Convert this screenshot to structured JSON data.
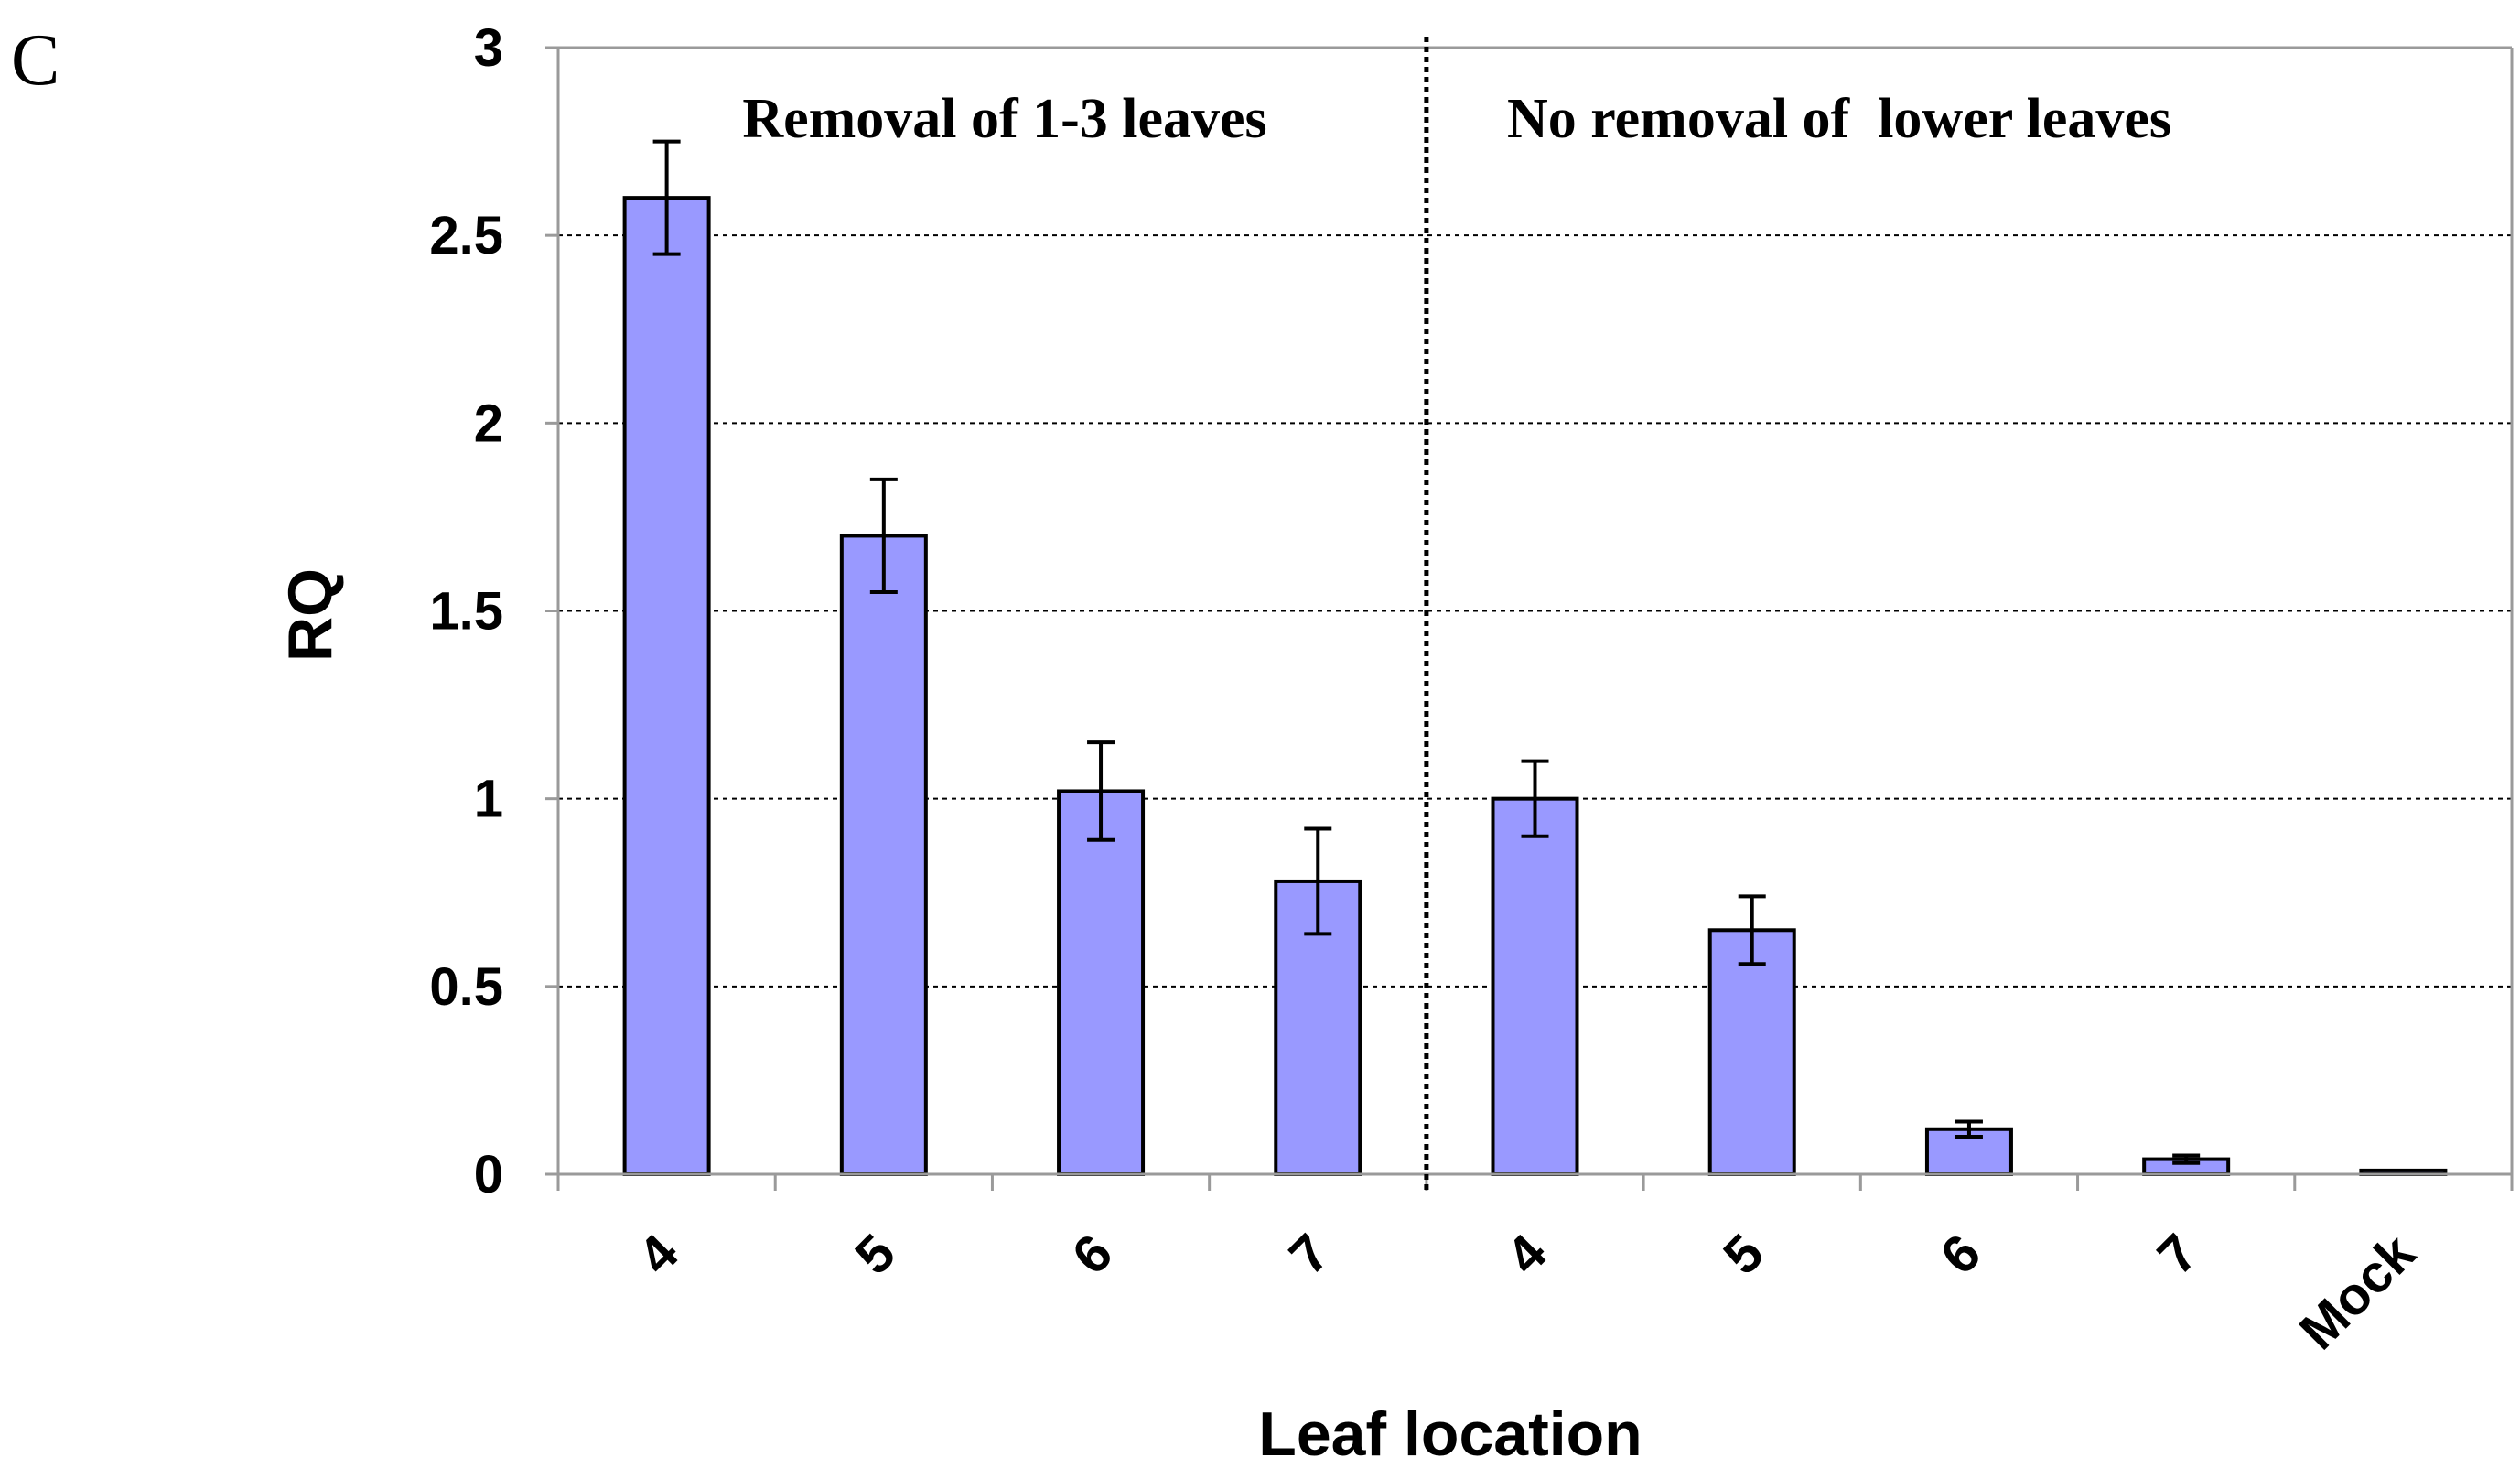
{
  "panel_label": "C",
  "colors": {
    "bar_fill": "#9999ff",
    "bar_stroke": "#000000",
    "gridline": "#000000",
    "axis": "#9a9a9a"
  },
  "chart_data": {
    "type": "bar",
    "ylabel": "RQ",
    "xlabel": "Leaf location",
    "ylim": [
      0,
      3
    ],
    "yticks": [
      "0",
      "0.5",
      "1",
      "1.5",
      "2",
      "2.5",
      "3"
    ],
    "grid": true,
    "categories": [
      "4",
      "5",
      "6",
      "7",
      "4",
      "5",
      "6",
      "7",
      "Mock"
    ],
    "values": [
      2.6,
      1.7,
      1.02,
      0.78,
      1.0,
      0.65,
      0.12,
      0.04,
      0.01
    ],
    "errors": [
      0.15,
      0.15,
      0.13,
      0.14,
      0.1,
      0.09,
      0.02,
      0.01,
      0.0
    ],
    "groups": [
      {
        "label": "Removal of 1-3 leaves",
        "categories": [
          "4",
          "5",
          "6",
          "7"
        ]
      },
      {
        "label": "No removal of  lower leaves",
        "categories": [
          "4",
          "5",
          "6",
          "7",
          "Mock"
        ]
      }
    ]
  }
}
